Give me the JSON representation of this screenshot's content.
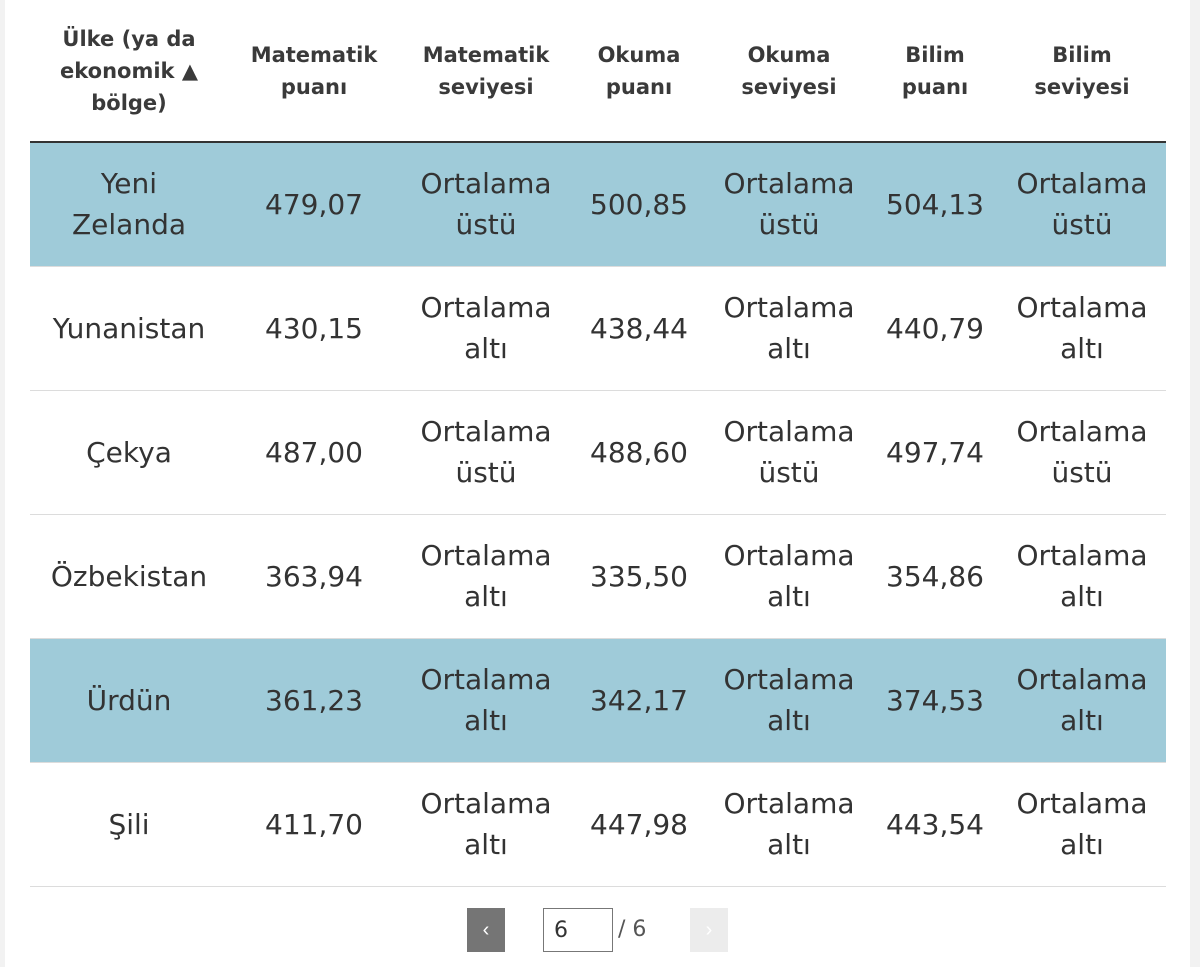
{
  "table": {
    "headers": [
      {
        "lines": [
          "Ülke (ya da",
          "ekonomik ▲",
          "bölge)"
        ]
      },
      {
        "lines": [
          "Matematik",
          "puanı"
        ]
      },
      {
        "lines": [
          "Matematik",
          "seviyesi"
        ]
      },
      {
        "lines": [
          "Okuma",
          "puanı"
        ]
      },
      {
        "lines": [
          "Okuma",
          "seviyesi"
        ]
      },
      {
        "lines": [
          "Bilim",
          "puanı"
        ]
      },
      {
        "lines": [
          "Bilim",
          "seviyesi"
        ]
      }
    ],
    "rows": [
      {
        "country": [
          "Yeni",
          "Zelanda"
        ],
        "math_score": "479,07",
        "math_level": [
          "Ortalama",
          "üstü"
        ],
        "reading_score": "500,85",
        "reading_level": [
          "Ortalama",
          "üstü"
        ],
        "science_score": "504,13",
        "science_level": [
          "Ortalama",
          "üstü"
        ]
      },
      {
        "country": [
          "Yunanistan"
        ],
        "math_score": "430,15",
        "math_level": [
          "Ortalama",
          "altı"
        ],
        "reading_score": "438,44",
        "reading_level": [
          "Ortalama",
          "altı"
        ],
        "science_score": "440,79",
        "science_level": [
          "Ortalama",
          "altı"
        ]
      },
      {
        "country": [
          "Çekya"
        ],
        "math_score": "487,00",
        "math_level": [
          "Ortalama",
          "üstü"
        ],
        "reading_score": "488,60",
        "reading_level": [
          "Ortalama",
          "üstü"
        ],
        "science_score": "497,74",
        "science_level": [
          "Ortalama",
          "üstü"
        ]
      },
      {
        "country": [
          "Özbekistan"
        ],
        "math_score": "363,94",
        "math_level": [
          "Ortalama",
          "altı"
        ],
        "reading_score": "335,50",
        "reading_level": [
          "Ortalama",
          "altı"
        ],
        "science_score": "354,86",
        "science_level": [
          "Ortalama",
          "altı"
        ]
      },
      {
        "country": [
          "Ürdün"
        ],
        "math_score": "361,23",
        "math_level": [
          "Ortalama",
          "altı"
        ],
        "reading_score": "342,17",
        "reading_level": [
          "Ortalama",
          "altı"
        ],
        "science_score": "374,53",
        "science_level": [
          "Ortalama",
          "altı"
        ]
      },
      {
        "country": [
          "Şili"
        ],
        "math_score": "411,70",
        "math_level": [
          "Ortalama",
          "altı"
        ],
        "reading_score": "447,98",
        "reading_level": [
          "Ortalama",
          "altı"
        ],
        "science_score": "443,54",
        "science_level": [
          "Ortalama",
          "altı"
        ]
      }
    ]
  },
  "pagination": {
    "prev_icon": "‹",
    "current_page": "6",
    "total": "/ 6",
    "next_icon": "›"
  },
  "colors": {
    "highlight_row": "#9fcbd9",
    "prev_button": "#757575",
    "next_button_disabled": "#ececec"
  }
}
